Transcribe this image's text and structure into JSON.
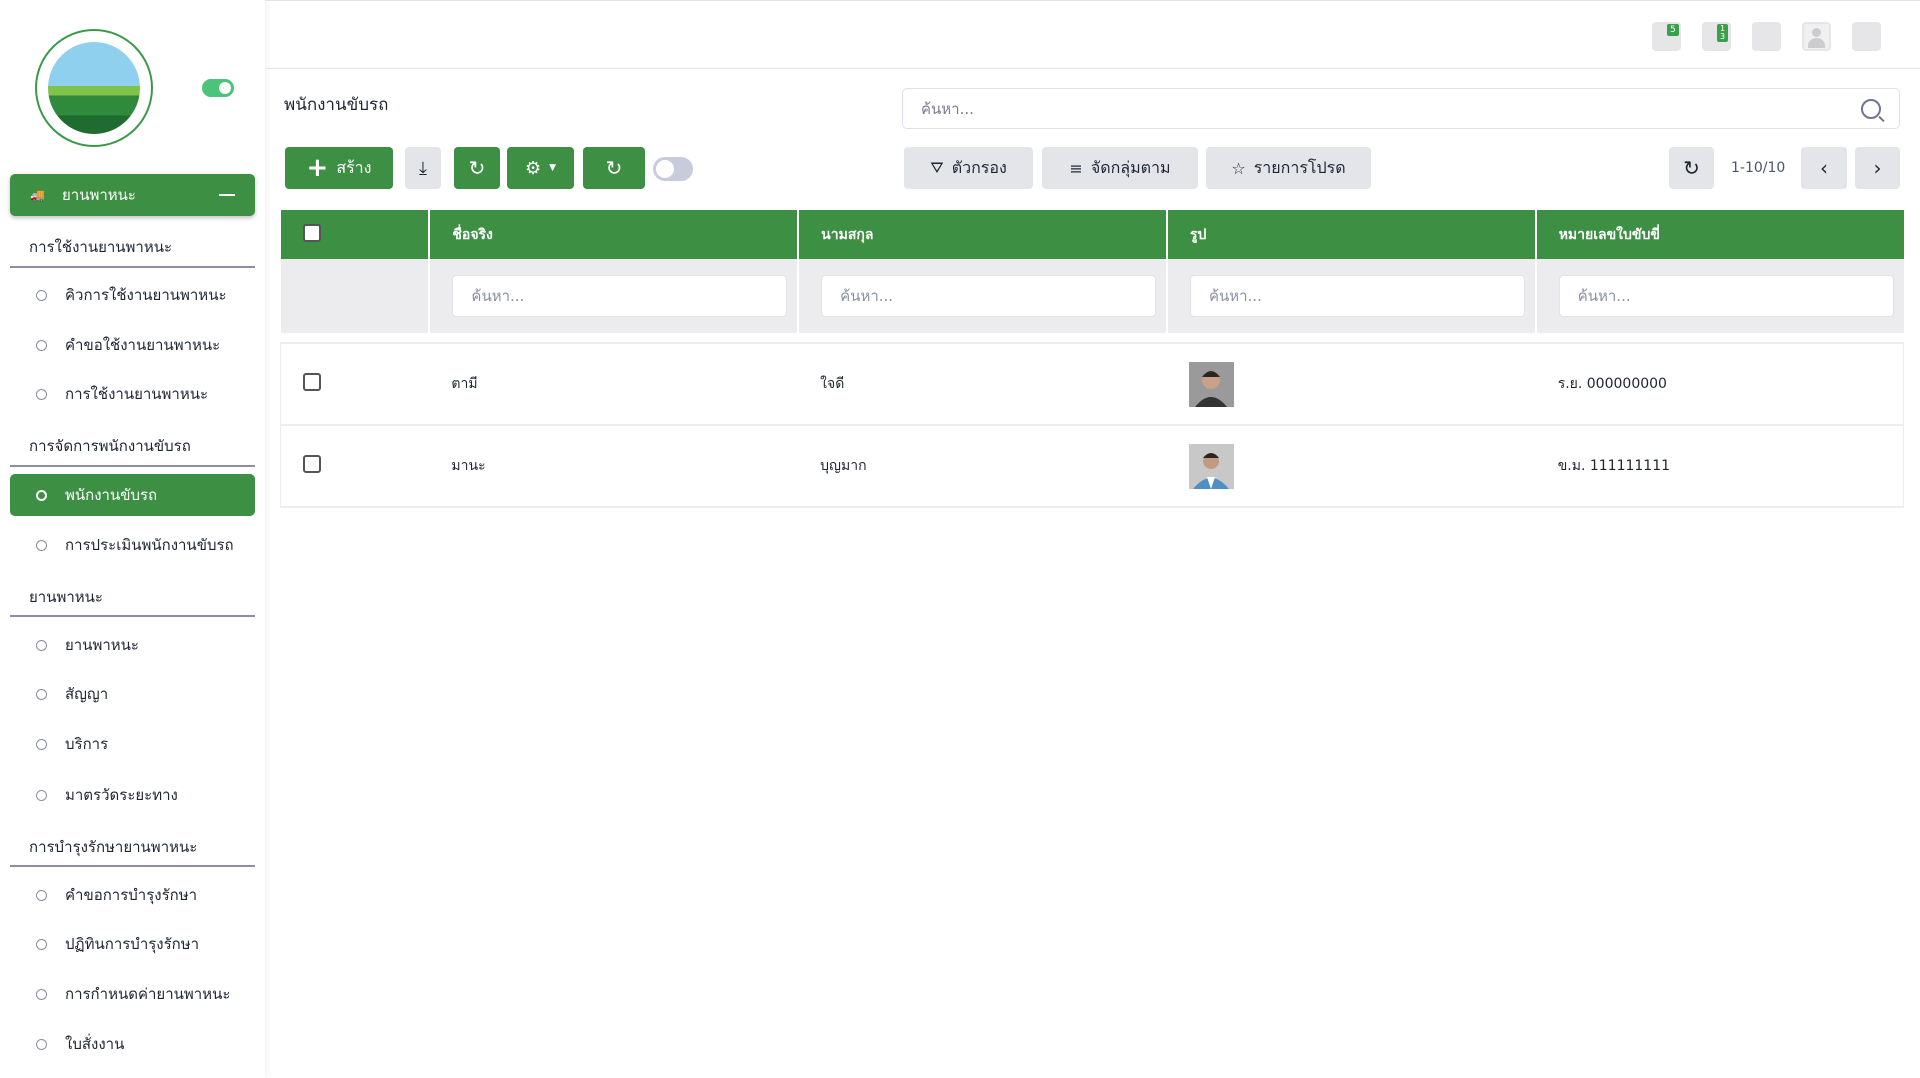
{
  "sidebar": {
    "main_menu": "ยานพาหนะ",
    "sections": [
      {
        "title": "การใช้งานยานพาหนะ",
        "items": [
          "คิวการใช้งานยานพาหนะ",
          "คำขอใช้งานยานพาหนะ",
          "การใช้งานยานพาหนะ"
        ]
      },
      {
        "title": "การจัดการพนักงานขับรถ",
        "items": [
          "พนักงานขับรถ",
          "การประเมินพนักงานขับรถ"
        ]
      },
      {
        "title": "ยานพาหนะ",
        "items": [
          "ยานพาหนะ",
          "สัญญา",
          "บริการ",
          "มาตรวัดระยะทาง"
        ]
      },
      {
        "title": "การบำรุงรักษายานพาหนะ",
        "items": [
          "คำขอการบำรุงรักษา",
          "ปฏิทินการบำรุงรักษา",
          "การกำหนดค่ายานพาหนะ",
          "ใบสั่งงาน"
        ]
      }
    ],
    "active_item": "พนักงานขับรถ"
  },
  "topbar": {
    "badges": [
      "5",
      "1\n3"
    ]
  },
  "page": {
    "title": "พนักงานขับรถ",
    "search_placeholder": "ค้นหา..."
  },
  "toolbar": {
    "create": "สร้าง",
    "filter": "ตัวกรอง",
    "group_by": "จัดกลุ่มตาม",
    "favorites": "รายการโปรด",
    "pagination": "1-10/10"
  },
  "table": {
    "columns": [
      "ชื่อจริง",
      "นามสกุล",
      "รูป",
      "หมายเลขใบขับขี่"
    ],
    "filter_placeholder": "ค้นหา...",
    "rows": [
      {
        "first": "ตามี",
        "last": "ใจดี",
        "license": "ร.ย. 000000000"
      },
      {
        "first": "มานะ",
        "last": "บุญมาก",
        "license": "ข.ม. 111111111"
      }
    ]
  },
  "colors": {
    "accent": "#3d8f43",
    "toggle_on": "#4cc37a"
  }
}
